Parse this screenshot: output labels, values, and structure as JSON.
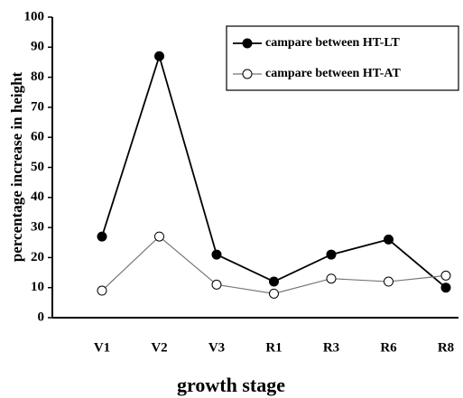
{
  "chart_data": {
    "type": "line",
    "xlabel": "growth stage",
    "ylabel": "percentage increase in height",
    "categories": [
      "V1",
      "V2",
      "V3",
      "R1",
      "R3",
      "R6",
      "R8"
    ],
    "series": [
      {
        "name": "campare between HT-LT",
        "color": "#000000",
        "marker": "filled",
        "values": [
          27,
          87,
          21,
          12,
          21,
          26,
          10
        ]
      },
      {
        "name": "campare between HT-AT",
        "color": "#777777",
        "marker": "open",
        "values": [
          9,
          27,
          11,
          8,
          13,
          12,
          14
        ]
      }
    ],
    "ylim": [
      0,
      100
    ],
    "yticks": [
      0,
      10,
      20,
      30,
      40,
      50,
      60,
      70,
      80,
      90,
      100
    ],
    "grid": false,
    "legend": "upper right"
  }
}
